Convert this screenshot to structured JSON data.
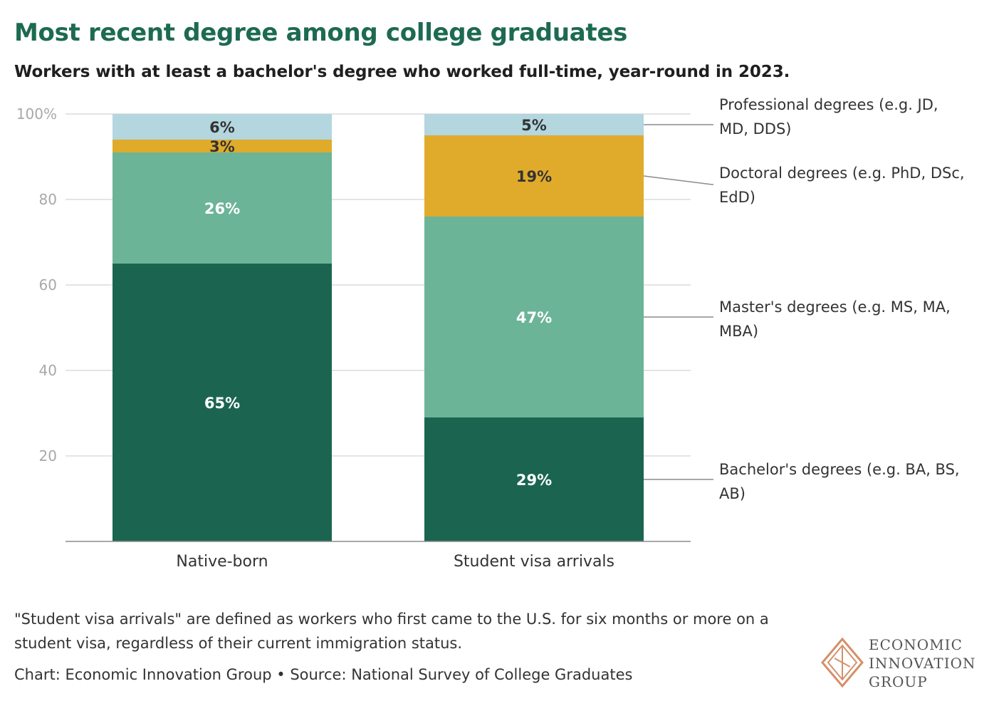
{
  "title": "Most recent degree among college graduates",
  "subtitle": "Workers with at least a bachelor's degree who worked full-time, year-round in 2023.",
  "note": "\"Student visa arrivals\" are defined as workers who first came to the U.S. for six months or more on a student visa, regardless of their current immigration status.",
  "credit": "Chart: Economic Innovation Group • Source: National Survey of College Graduates",
  "logo": {
    "line1": "ECONOMIC",
    "line2": "INNOVATION",
    "line3": "GROUP",
    "color": "#d4906a"
  },
  "chart_data": {
    "type": "bar",
    "stacked": true,
    "title": "Most recent degree among college graduates",
    "xlabel": "",
    "ylabel": "",
    "ylim": [
      0,
      100
    ],
    "yticks": [
      20,
      40,
      60,
      80,
      100
    ],
    "ytick_labels": [
      "20",
      "40",
      "60",
      "80",
      "100%"
    ],
    "grid": true,
    "legend": "right, direct labels",
    "categories": [
      "Native-born",
      "Student visa arrivals"
    ],
    "series": [
      {
        "name": "Bachelor's degrees (e.g. BA, BS, AB)",
        "label_lines": [
          "Bachelor's degrees (e.g. BA, BS,",
          "AB)"
        ],
        "color": "#1b6550",
        "text_color": "#ffffff",
        "values": [
          65,
          29
        ],
        "labels": [
          "65%",
          "29%"
        ]
      },
      {
        "name": "Master's degrees (e.g. MS, MA, MBA)",
        "label_lines": [
          "Master's degrees (e.g. MS, MA,",
          "MBA)"
        ],
        "color": "#6bb498",
        "text_color": "#ffffff",
        "values": [
          26,
          47
        ],
        "labels": [
          "26%",
          "47%"
        ]
      },
      {
        "name": "Doctoral degrees (e.g. PhD, DSc, EdD)",
        "label_lines": [
          "Doctoral degrees (e.g. PhD, DSc,",
          "EdD)"
        ],
        "color": "#e0ab2b",
        "text_color": "#333333",
        "values": [
          3,
          19
        ],
        "labels": [
          "3%",
          "19%"
        ]
      },
      {
        "name": "Professional degrees (e.g. JD, MD, DDS)",
        "label_lines": [
          "Professional degrees (e.g. JD,",
          "MD, DDS)"
        ],
        "color": "#b3d6df",
        "text_color": "#333333",
        "values": [
          6,
          5
        ],
        "labels": [
          "6%",
          "5%"
        ]
      }
    ]
  }
}
